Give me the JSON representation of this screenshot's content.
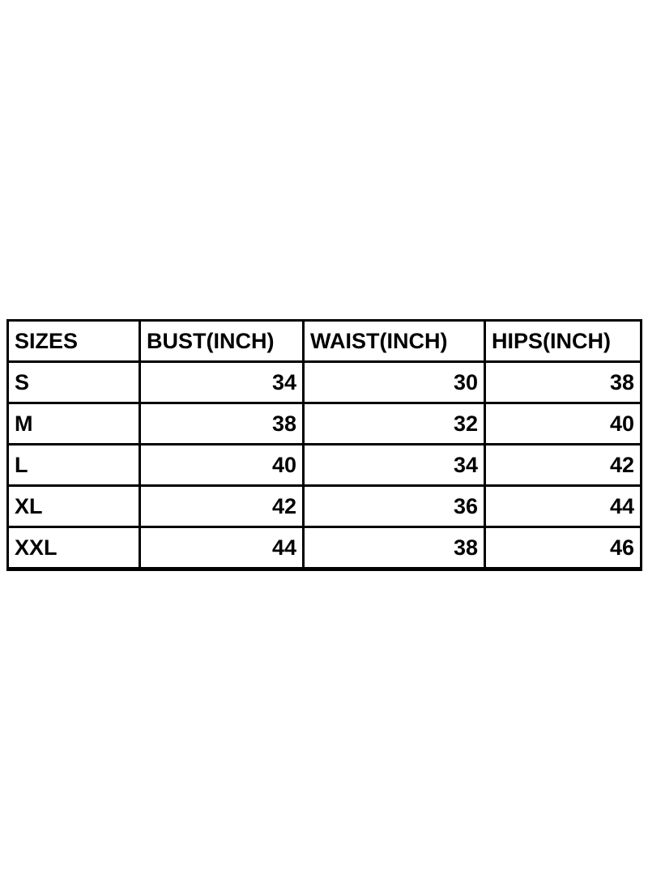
{
  "page": {
    "background_color": "#ffffff",
    "text_color": "#000000",
    "border_color": "#000000"
  },
  "size_chart": {
    "columns": [
      "SIZES",
      "BUST(INCH)",
      "WAIST(INCH)",
      "HIPS(INCH)"
    ],
    "rows": [
      {
        "cells": [
          "S",
          "34",
          "30",
          "38"
        ]
      },
      {
        "cells": [
          "M",
          "38",
          "32",
          "40"
        ]
      },
      {
        "cells": [
          "L",
          "40",
          "34",
          "42"
        ]
      },
      {
        "cells": [
          "XL",
          "42",
          "36",
          "44"
        ]
      },
      {
        "cells": [
          "XXL",
          "44",
          "38",
          "46"
        ]
      }
    ]
  },
  "chart_data": {
    "type": "table",
    "title": "",
    "columns": [
      "SIZES",
      "BUST(INCH)",
      "WAIST(INCH)",
      "HIPS(INCH)"
    ],
    "categories": [
      "S",
      "M",
      "L",
      "XL",
      "XXL"
    ],
    "series": [
      {
        "name": "BUST(INCH)",
        "values": [
          34,
          38,
          40,
          42,
          44
        ]
      },
      {
        "name": "WAIST(INCH)",
        "values": [
          30,
          32,
          34,
          36,
          38
        ]
      },
      {
        "name": "HIPS(INCH)",
        "values": [
          38,
          40,
          42,
          44,
          46
        ]
      }
    ],
    "layout": {
      "grid": "on",
      "alignment": {
        "headers": "left",
        "labels": "left",
        "values": "right"
      }
    }
  }
}
